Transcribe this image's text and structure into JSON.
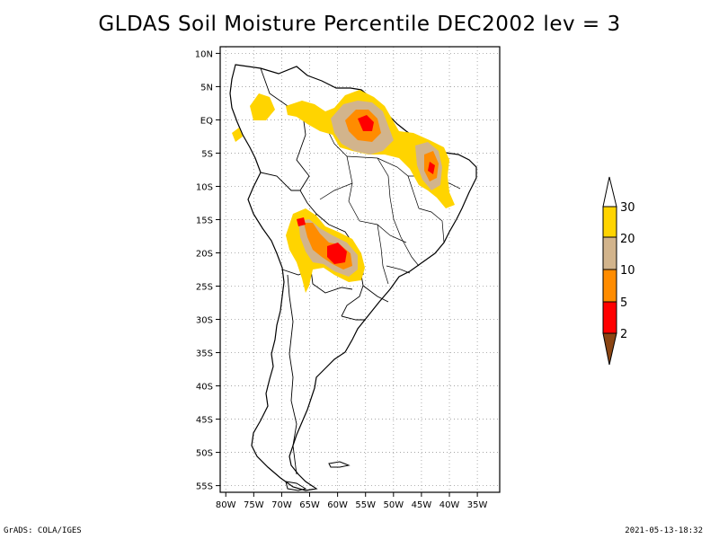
{
  "title": "GLDAS Soil Moisture Percentile DEC2002 lev = 3",
  "map": {
    "lon_range": [
      -81,
      -31
    ],
    "lat_range": [
      -56,
      11
    ],
    "lat_labels": [
      "10N",
      "5N",
      "EQ",
      "5S",
      "10S",
      "15S",
      "20S",
      "25S",
      "30S",
      "35S",
      "40S",
      "45S",
      "50S",
      "55S"
    ],
    "lat_values": [
      10,
      5,
      0,
      -5,
      -10,
      -15,
      -20,
      -25,
      -30,
      -35,
      -40,
      -45,
      -50,
      -55
    ],
    "lon_labels": [
      "80W",
      "75W",
      "70W",
      "65W",
      "60W",
      "55W",
      "50W",
      "45W",
      "40W",
      "35W"
    ],
    "lon_values": [
      -80,
      -75,
      -70,
      -65,
      -60,
      -55,
      -50,
      -45,
      -40,
      -35
    ]
  },
  "colorbar": {
    "labels": [
      "30",
      "20",
      "10",
      "5",
      "2"
    ],
    "colors": {
      "above_30": "#ffffff",
      "20_30": "#ffd400",
      "10_20": "#d2b48c",
      "5_10": "#ff8c00",
      "2_5": "#ff0000",
      "below_2": "#8b4513"
    }
  },
  "footer": {
    "left": "GrADS: COLA/IGES",
    "right": "2021-05-13-18:32"
  }
}
